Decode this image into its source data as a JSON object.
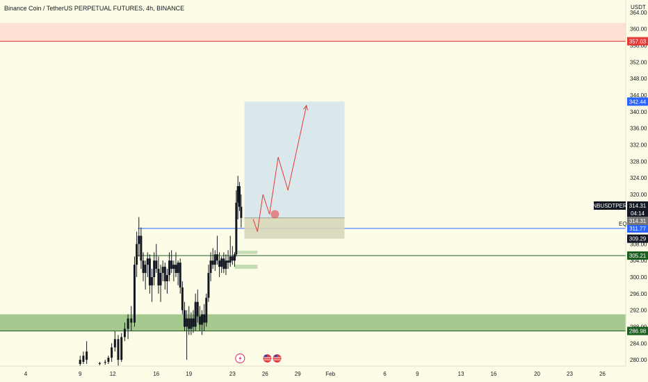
{
  "title": "Binance Coin / TetherUS PERPETUAL FUTURES, 4h, BINANCE",
  "colors": {
    "background": "#fdfde7",
    "candle": "#131722",
    "resistance_line": "#e53935",
    "resistance_zone": "#fde1d3",
    "support_zone": "#a5c98f",
    "support_line": "#1b5e20",
    "blue_line": "#2962ff",
    "green_line": "#1b5e20",
    "target_box": "#d3e3eb",
    "stop_box": "#d7d7ba",
    "projection": "#e53935"
  },
  "chart_data": {
    "type": "candlestick",
    "symbol": "BNBUSDTPERP",
    "unit": "USDT",
    "ylim": [
      278.5,
      366
    ],
    "y_ticks": [
      280,
      284,
      288,
      292,
      296,
      300,
      304,
      308,
      312,
      316,
      320,
      324,
      328,
      332,
      336,
      340,
      344,
      348,
      352,
      356,
      360,
      364
    ],
    "x_ticks": [
      "4",
      "9",
      "12",
      "16",
      "19",
      "23",
      "26",
      "29",
      "Feb",
      "6",
      "9",
      "13",
      "16",
      "20",
      "23",
      "26"
    ],
    "price_tags": [
      {
        "id": "resistance",
        "value": 357.03,
        "label": "357.03",
        "color": "#e53935"
      },
      {
        "id": "target",
        "value": 342.44,
        "label": "342.44",
        "color": "#2962ff"
      },
      {
        "id": "last",
        "value": 314.31,
        "label": "314.31",
        "color": "#131722",
        "symbol": "BNBUSDTPERP",
        "countdown": "04:14"
      },
      {
        "id": "entry",
        "value": 314.31,
        "label": "314.31",
        "color": "#757575"
      },
      {
        "id": "eq",
        "value": 311.77,
        "label": "311.77",
        "color": "#2962ff",
        "caption": "EQ"
      },
      {
        "id": "stop",
        "value": 309.29,
        "label": "309.29",
        "color": "#131722"
      },
      {
        "id": "level",
        "value": 305.21,
        "label": "305.21",
        "color": "#1b5e20"
      },
      {
        "id": "support",
        "value": 286.98,
        "label": "286.98",
        "color": "#1b5e20"
      }
    ],
    "support_zone": [
      286.98,
      291
    ],
    "resistance_zone": [
      357.03,
      361.5
    ],
    "target_box": {
      "top": 342.44,
      "bottom": 314.31
    },
    "stop_box": {
      "top": 314.31,
      "bottom": 309.29
    },
    "projection_path": [
      [
        24.9,
        314
      ],
      [
        25.3,
        311
      ],
      [
        25.8,
        320
      ],
      [
        26.4,
        315.2
      ],
      [
        27.2,
        329
      ],
      [
        28.1,
        321
      ],
      [
        29.8,
        341.5
      ]
    ],
    "event_markers": [
      {
        "day": 23.7,
        "type": "flash"
      },
      {
        "day": 26.2,
        "type": "us-flag"
      },
      {
        "day": 27.1,
        "type": "us-flag"
      },
      {
        "day": 26.9,
        "type": "highlight"
      }
    ],
    "candles": [
      [
        9.0,
        279.0,
        281.0,
        278.5,
        280.0
      ],
      [
        9.3,
        279.5,
        282.0,
        279.0,
        281.0
      ],
      [
        9.6,
        280.0,
        284.5,
        279.0,
        282.0
      ],
      [
        10.8,
        279.0,
        279.5,
        278.7,
        279.2
      ],
      [
        11.3,
        279.3,
        280.0,
        278.8,
        279.5
      ],
      [
        11.6,
        279.5,
        281.0,
        279.0,
        280.5
      ],
      [
        11.9,
        280.5,
        284.0,
        279.5,
        283.0
      ],
      [
        12.2,
        283.0,
        287.0,
        282.0,
        285.0
      ],
      [
        12.5,
        285.0,
        286.0,
        278.5,
        280.0
      ],
      [
        12.8,
        280.0,
        286.5,
        279.5,
        285.5
      ],
      [
        13.1,
        285.5,
        289.0,
        284.5,
        287.5
      ],
      [
        13.4,
        287.5,
        291.0,
        285.0,
        290.0
      ],
      [
        13.7,
        290.0,
        293.0,
        287.0,
        289.0
      ],
      [
        14.0,
        289.0,
        305.0,
        288.0,
        303.0
      ],
      [
        14.2,
        303.0,
        311.0,
        300.0,
        308.0
      ],
      [
        14.4,
        308.0,
        314.5,
        305.0,
        310.0
      ],
      [
        14.6,
        310.0,
        312.0,
        302.0,
        304.0
      ],
      [
        14.8,
        304.0,
        306.0,
        299.0,
        301.0
      ],
      [
        15.0,
        301.0,
        304.0,
        297.0,
        303.0
      ],
      [
        15.2,
        303.0,
        306.0,
        300.0,
        304.5
      ],
      [
        15.4,
        304.5,
        305.5,
        296.0,
        298.0
      ],
      [
        15.6,
        298.0,
        302.0,
        294.0,
        300.0
      ],
      [
        15.8,
        300.0,
        306.0,
        298.0,
        304.0
      ],
      [
        16.0,
        304.0,
        308.0,
        301.0,
        302.0
      ],
      [
        16.2,
        302.0,
        305.0,
        296.0,
        298.0
      ],
      [
        16.4,
        298.0,
        303.0,
        294.0,
        301.0
      ],
      [
        16.6,
        301.0,
        304.0,
        299.0,
        302.5
      ],
      [
        16.8,
        302.5,
        303.5,
        297.0,
        299.0
      ],
      [
        17.0,
        299.0,
        302.0,
        296.0,
        300.5
      ],
      [
        17.2,
        300.5,
        306.0,
        299.0,
        304.0
      ],
      [
        17.4,
        304.0,
        306.5,
        301.0,
        302.0
      ],
      [
        17.6,
        302.0,
        304.0,
        299.0,
        303.0
      ],
      [
        17.8,
        303.0,
        306.0,
        300.0,
        301.0
      ],
      [
        18.0,
        301.0,
        304.0,
        298.0,
        303.5
      ],
      [
        18.2,
        303.5,
        304.5,
        296.0,
        297.5
      ],
      [
        18.4,
        297.5,
        299.0,
        291.0,
        292.0
      ],
      [
        18.6,
        292.0,
        294.0,
        287.0,
        288.0
      ],
      [
        18.8,
        288.0,
        292.0,
        280.0,
        290.0
      ],
      [
        19.0,
        290.0,
        293.0,
        286.0,
        287.5
      ],
      [
        19.2,
        287.5,
        291.5,
        286.0,
        290.0
      ],
      [
        19.4,
        290.0,
        292.0,
        286.5,
        288.0
      ],
      [
        19.6,
        288.0,
        296.0,
        287.0,
        294.0
      ],
      [
        19.8,
        294.0,
        297.0,
        289.0,
        290.5
      ],
      [
        20.0,
        290.5,
        293.0,
        287.0,
        288.5
      ],
      [
        20.2,
        288.5,
        292.0,
        286.0,
        291.0
      ],
      [
        20.4,
        291.0,
        293.5,
        287.0,
        289.0
      ],
      [
        20.6,
        289.0,
        296.0,
        288.0,
        295.0
      ],
      [
        20.8,
        295.0,
        303.0,
        294.0,
        301.0
      ],
      [
        21.0,
        301.0,
        306.0,
        299.0,
        304.0
      ],
      [
        21.2,
        304.0,
        307.0,
        302.0,
        303.0
      ],
      [
        21.4,
        303.0,
        306.5,
        301.5,
        305.5
      ],
      [
        21.6,
        305.5,
        310.0,
        303.0,
        304.0
      ],
      [
        21.8,
        304.0,
        306.0,
        300.0,
        302.5
      ],
      [
        22.0,
        302.5,
        305.0,
        301.0,
        304.5
      ],
      [
        22.2,
        304.5,
        306.0,
        301.0,
        302.0
      ],
      [
        22.4,
        302.0,
        305.5,
        300.5,
        304.0
      ],
      [
        22.6,
        304.0,
        306.5,
        302.0,
        303.5
      ],
      [
        22.8,
        303.5,
        310.0,
        302.5,
        305.0
      ],
      [
        23.0,
        305.0,
        307.5,
        303.0,
        304.0
      ],
      [
        23.2,
        304.0,
        306.0,
        302.5,
        305.5
      ],
      [
        23.35,
        305.5,
        321.0,
        305.0,
        318.0
      ],
      [
        23.5,
        318.0,
        324.5,
        314.0,
        322.0
      ],
      [
        23.65,
        322.0,
        323.0,
        316.0,
        317.0
      ],
      [
        23.8,
        317.0,
        320.0,
        312.0,
        314.31
      ]
    ]
  }
}
